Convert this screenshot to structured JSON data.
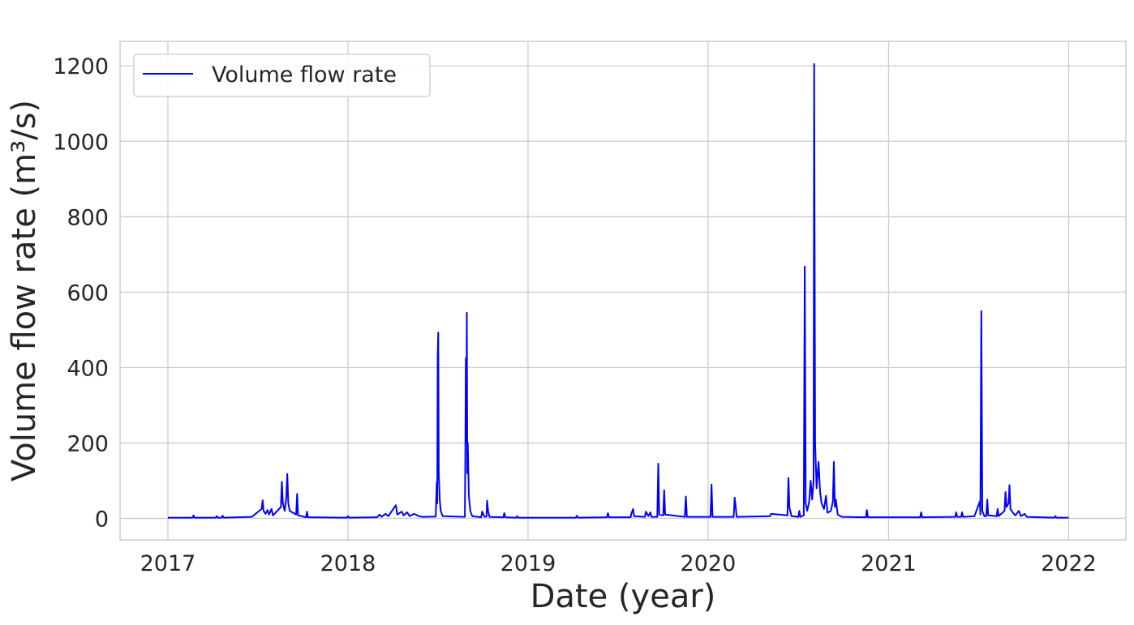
{
  "chart_data": {
    "type": "line",
    "title": "",
    "xlabel": "Date (year)",
    "ylabel": "Volume flow rate (m³/s)",
    "x_type": "date",
    "xlim": [
      "2016-09-26",
      "2022-04-27"
    ],
    "ylim": [
      -57,
      1265
    ],
    "x_ticks": [
      "2017-01-01",
      "2018-01-01",
      "2019-01-01",
      "2020-01-01",
      "2021-01-01",
      "2022-01-01"
    ],
    "x_tick_labels": [
      "2017",
      "2018",
      "2019",
      "2020",
      "2021",
      "2022"
    ],
    "y_ticks": [
      0,
      200,
      400,
      600,
      800,
      1000,
      1200
    ],
    "y_tick_labels": [
      "0",
      "200",
      "400",
      "600",
      "800",
      "1000",
      "1200"
    ],
    "grid": true,
    "legend_position": "top-left",
    "series": [
      {
        "name": "Volume flow rate",
        "color": "#0000ff",
        "points": [
          [
            "2017-01-01",
            2
          ],
          [
            "2017-02-20",
            2
          ],
          [
            "2017-02-22",
            8
          ],
          [
            "2017-02-24",
            2
          ],
          [
            "2017-04-08",
            2
          ],
          [
            "2017-04-10",
            6
          ],
          [
            "2017-04-12",
            2
          ],
          [
            "2017-04-20",
            2
          ],
          [
            "2017-04-22",
            7
          ],
          [
            "2017-04-24",
            2
          ],
          [
            "2017-06-20",
            4
          ],
          [
            "2017-07-10",
            25
          ],
          [
            "2017-07-12",
            48
          ],
          [
            "2017-07-14",
            20
          ],
          [
            "2017-07-18",
            12
          ],
          [
            "2017-07-22",
            22
          ],
          [
            "2017-07-25",
            10
          ],
          [
            "2017-07-30",
            25
          ],
          [
            "2017-08-02",
            8
          ],
          [
            "2017-08-18",
            30
          ],
          [
            "2017-08-20",
            97
          ],
          [
            "2017-08-22",
            40
          ],
          [
            "2017-08-26",
            20
          ],
          [
            "2017-08-29",
            55
          ],
          [
            "2017-08-31",
            118
          ],
          [
            "2017-09-02",
            40
          ],
          [
            "2017-09-05",
            20
          ],
          [
            "2017-09-18",
            10
          ],
          [
            "2017-09-20",
            65
          ],
          [
            "2017-09-22",
            8
          ],
          [
            "2017-10-08",
            3
          ],
          [
            "2017-10-10",
            18
          ],
          [
            "2017-10-12",
            3
          ],
          [
            "2017-12-30",
            2
          ],
          [
            "2018-01-01",
            6
          ],
          [
            "2018-01-03",
            2
          ],
          [
            "2018-03-01",
            3
          ],
          [
            "2018-03-06",
            10
          ],
          [
            "2018-03-10",
            4
          ],
          [
            "2018-03-18",
            12
          ],
          [
            "2018-03-24",
            6
          ],
          [
            "2018-04-08",
            35
          ],
          [
            "2018-04-11",
            10
          ],
          [
            "2018-04-20",
            18
          ],
          [
            "2018-04-24",
            8
          ],
          [
            "2018-05-01",
            16
          ],
          [
            "2018-05-06",
            6
          ],
          [
            "2018-05-15",
            12
          ],
          [
            "2018-05-25",
            6
          ],
          [
            "2018-06-01",
            4
          ],
          [
            "2018-06-28",
            5
          ],
          [
            "2018-06-30",
            95
          ],
          [
            "2018-07-01",
            40
          ],
          [
            "2018-07-02",
            430
          ],
          [
            "2018-07-03",
            493
          ],
          [
            "2018-07-04",
            120
          ],
          [
            "2018-07-06",
            50
          ],
          [
            "2018-07-08",
            20
          ],
          [
            "2018-07-12",
            6
          ],
          [
            "2018-08-26",
            4
          ],
          [
            "2018-08-27",
            180
          ],
          [
            "2018-08-28",
            425
          ],
          [
            "2018-08-29",
            200
          ],
          [
            "2018-08-30",
            545
          ],
          [
            "2018-08-31",
            120
          ],
          [
            "2018-09-01",
            200
          ],
          [
            "2018-09-03",
            60
          ],
          [
            "2018-09-06",
            20
          ],
          [
            "2018-09-10",
            6
          ],
          [
            "2018-09-28",
            3
          ],
          [
            "2018-09-30",
            18
          ],
          [
            "2018-10-05",
            4
          ],
          [
            "2018-10-09",
            5
          ],
          [
            "2018-10-10",
            47
          ],
          [
            "2018-10-12",
            20
          ],
          [
            "2018-10-15",
            4
          ],
          [
            "2018-11-12",
            3
          ],
          [
            "2018-11-14",
            14
          ],
          [
            "2018-11-16",
            3
          ],
          [
            "2018-12-08",
            2
          ],
          [
            "2018-12-10",
            6
          ],
          [
            "2018-12-12",
            2
          ],
          [
            "2019-04-08",
            2
          ],
          [
            "2019-04-10",
            7
          ],
          [
            "2019-04-12",
            2
          ],
          [
            "2019-06-10",
            3
          ],
          [
            "2019-06-12",
            14
          ],
          [
            "2019-06-14",
            3
          ],
          [
            "2019-07-28",
            3
          ],
          [
            "2019-07-30",
            14
          ],
          [
            "2019-08-02",
            25
          ],
          [
            "2019-08-04",
            6
          ],
          [
            "2019-08-26",
            4
          ],
          [
            "2019-08-28",
            18
          ],
          [
            "2019-09-02",
            6
          ],
          [
            "2019-09-06",
            16
          ],
          [
            "2019-09-08",
            4
          ],
          [
            "2019-09-20",
            4
          ],
          [
            "2019-09-22",
            145
          ],
          [
            "2019-09-24",
            10
          ],
          [
            "2019-10-02",
            8
          ],
          [
            "2019-10-04",
            75
          ],
          [
            "2019-10-06",
            10
          ],
          [
            "2019-11-15",
            4
          ],
          [
            "2019-11-17",
            58
          ],
          [
            "2019-11-19",
            4
          ],
          [
            "2020-01-06",
            4
          ],
          [
            "2020-01-08",
            90
          ],
          [
            "2020-01-10",
            4
          ],
          [
            "2020-02-22",
            4
          ],
          [
            "2020-02-24",
            55
          ],
          [
            "2020-02-26",
            30
          ],
          [
            "2020-02-28",
            4
          ],
          [
            "2020-05-06",
            6
          ],
          [
            "2020-05-08",
            12
          ],
          [
            "2020-06-10",
            8
          ],
          [
            "2020-06-12",
            107
          ],
          [
            "2020-06-14",
            30
          ],
          [
            "2020-06-18",
            6
          ],
          [
            "2020-07-02",
            4
          ],
          [
            "2020-07-04",
            20
          ],
          [
            "2020-07-06",
            4
          ],
          [
            "2020-07-13",
            8
          ],
          [
            "2020-07-15",
            668
          ],
          [
            "2020-07-17",
            40
          ],
          [
            "2020-07-20",
            20
          ],
          [
            "2020-07-24",
            45
          ],
          [
            "2020-07-27",
            100
          ],
          [
            "2020-07-30",
            50
          ],
          [
            "2020-08-02",
            100
          ],
          [
            "2020-08-03",
            1205
          ],
          [
            "2020-08-05",
            200
          ],
          [
            "2020-08-08",
            80
          ],
          [
            "2020-08-12",
            150
          ],
          [
            "2020-08-15",
            70
          ],
          [
            "2020-08-18",
            40
          ],
          [
            "2020-08-23",
            25
          ],
          [
            "2020-08-27",
            60
          ],
          [
            "2020-08-30",
            15
          ],
          [
            "2020-09-06",
            20
          ],
          [
            "2020-09-10",
            45
          ],
          [
            "2020-09-12",
            150
          ],
          [
            "2020-09-14",
            30
          ],
          [
            "2020-09-16",
            50
          ],
          [
            "2020-09-20",
            10
          ],
          [
            "2020-09-28",
            4
          ],
          [
            "2020-11-16",
            3
          ],
          [
            "2020-11-18",
            22
          ],
          [
            "2020-11-20",
            3
          ],
          [
            "2021-03-06",
            3
          ],
          [
            "2021-03-08",
            16
          ],
          [
            "2021-03-10",
            3
          ],
          [
            "2021-05-16",
            4
          ],
          [
            "2021-05-18",
            16
          ],
          [
            "2021-05-20",
            4
          ],
          [
            "2021-05-28",
            4
          ],
          [
            "2021-05-30",
            16
          ],
          [
            "2021-06-01",
            4
          ],
          [
            "2021-06-24",
            6
          ],
          [
            "2021-06-28",
            20
          ],
          [
            "2021-07-05",
            45
          ],
          [
            "2021-07-06",
            10
          ],
          [
            "2021-07-08",
            550
          ],
          [
            "2021-07-10",
            20
          ],
          [
            "2021-07-14",
            6
          ],
          [
            "2021-07-18",
            6
          ],
          [
            "2021-07-20",
            50
          ],
          [
            "2021-07-22",
            8
          ],
          [
            "2021-08-08",
            6
          ],
          [
            "2021-08-10",
            25
          ],
          [
            "2021-08-12",
            6
          ],
          [
            "2021-08-24",
            20
          ],
          [
            "2021-08-26",
            70
          ],
          [
            "2021-08-28",
            30
          ],
          [
            "2021-09-01",
            40
          ],
          [
            "2021-09-03",
            88
          ],
          [
            "2021-09-05",
            25
          ],
          [
            "2021-09-10",
            15
          ],
          [
            "2021-09-15",
            8
          ],
          [
            "2021-09-22",
            20
          ],
          [
            "2021-09-26",
            6
          ],
          [
            "2021-10-04",
            12
          ],
          [
            "2021-10-08",
            4
          ],
          [
            "2021-12-03",
            2
          ],
          [
            "2021-12-05",
            6
          ],
          [
            "2021-12-07",
            2
          ],
          [
            "2022-01-01",
            2
          ]
        ]
      }
    ]
  }
}
